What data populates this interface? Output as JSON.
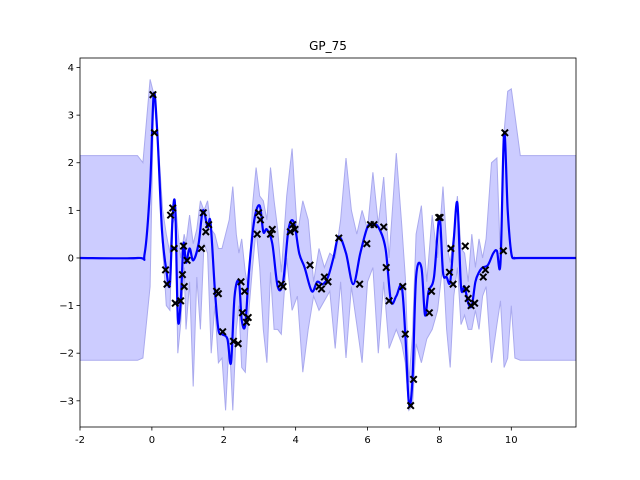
{
  "chart_data": {
    "type": "line",
    "title": "GP_75",
    "xlabel": "",
    "ylabel": "",
    "xlim": [
      -2,
      11.8
    ],
    "ylim": [
      -3.55,
      4.2
    ],
    "xticks": [
      -2,
      0,
      2,
      4,
      6,
      8,
      10
    ],
    "yticks": [
      -3,
      -2,
      -1,
      0,
      1,
      2,
      3,
      4
    ],
    "grid": false,
    "colors": {
      "mean": "#0000ff",
      "band": "#ccccff",
      "band_edge": "#aaaaee",
      "points": "#000000"
    },
    "mean": {
      "x": [
        -2,
        -0.4,
        -0.2,
        -0.05,
        0.05,
        0.15,
        0.28,
        0.4,
        0.5,
        0.58,
        0.65,
        0.72,
        0.8,
        0.88,
        0.95,
        1.05,
        1.15,
        1.3,
        1.42,
        1.55,
        1.63,
        1.75,
        1.85,
        1.95,
        2.1,
        2.2,
        2.3,
        2.42,
        2.5,
        2.6,
        2.7,
        2.85,
        3.0,
        3.1,
        3.2,
        3.35,
        3.5,
        3.65,
        3.8,
        3.95,
        4.1,
        4.25,
        4.45,
        4.6,
        4.75,
        4.9,
        5.05,
        5.2,
        5.4,
        5.6,
        5.8,
        6.0,
        6.15,
        6.3,
        6.5,
        6.65,
        6.8,
        6.95,
        7.05,
        7.15,
        7.25,
        7.35,
        7.5,
        7.6,
        7.7,
        7.85,
        8.0,
        8.1,
        8.2,
        8.3,
        8.4,
        8.5,
        8.6,
        8.7,
        8.8,
        8.9,
        9.0,
        9.1,
        9.2,
        9.35,
        9.5,
        9.6,
        9.7,
        9.8,
        9.9,
        10.0,
        10.1,
        10.25,
        11.8
      ],
      "y": [
        0,
        0,
        0.1,
        1.5,
        3.43,
        2.63,
        0.6,
        -0.25,
        -0.55,
        0.9,
        1.05,
        -1.25,
        -0.95,
        0.3,
        -0.1,
        0.2,
        -0.05,
        0.3,
        1.0,
        0.65,
        0.75,
        -0.65,
        -1.5,
        -1.6,
        -1.7,
        -2.2,
        -0.8,
        -0.5,
        -1.3,
        -1.4,
        -0.3,
        0.8,
        1.1,
        0.55,
        0.6,
        0.3,
        -0.6,
        -0.5,
        0.6,
        0.75,
        0.1,
        -0.2,
        -0.7,
        -0.5,
        -0.55,
        -0.4,
        0.0,
        0.45,
        0.1,
        -0.55,
        0.1,
        0.65,
        0.7,
        0.65,
        0.2,
        -0.9,
        -0.8,
        -0.6,
        -1.6,
        -3.05,
        -2.55,
        -0.4,
        -0.2,
        -1.2,
        -0.7,
        -0.4,
        0.85,
        -0.3,
        -0.4,
        -0.5,
        0.4,
        1.15,
        -0.6,
        -0.6,
        -0.95,
        -1.0,
        -0.5,
        -0.3,
        -0.2,
        -0.15,
        0.1,
        0.15,
        -0.1,
        2.63,
        1.0,
        0.1,
        0,
        0,
        0
      ]
    },
    "band": {
      "x": [
        -2,
        -0.4,
        -0.25,
        -0.05,
        0.05,
        0.15,
        0.3,
        0.4,
        0.5,
        0.58,
        0.65,
        0.72,
        0.8,
        0.9,
        0.95,
        1.05,
        1.15,
        1.25,
        1.35,
        1.45,
        1.55,
        1.65,
        1.75,
        1.85,
        1.95,
        2.05,
        2.15,
        2.25,
        2.35,
        2.42,
        2.5,
        2.6,
        2.7,
        2.8,
        2.9,
        3.0,
        3.1,
        3.2,
        3.3,
        3.4,
        3.5,
        3.6,
        3.75,
        3.9,
        4.05,
        4.2,
        4.35,
        4.5,
        4.65,
        4.8,
        4.95,
        5.1,
        5.25,
        5.4,
        5.55,
        5.7,
        5.85,
        6.0,
        6.15,
        6.3,
        6.45,
        6.6,
        6.8,
        6.95,
        7.05,
        7.15,
        7.25,
        7.35,
        7.5,
        7.65,
        7.8,
        7.95,
        8.1,
        8.2,
        8.3,
        8.4,
        8.5,
        8.6,
        8.7,
        8.8,
        8.9,
        9.0,
        9.1,
        9.2,
        9.3,
        9.45,
        9.6,
        9.7,
        9.8,
        9.9,
        10.0,
        10.1,
        10.25,
        11.8
      ],
      "upper": [
        2.15,
        2.15,
        2.0,
        3.75,
        3.45,
        2.7,
        1.0,
        0.5,
        0.1,
        1.1,
        1.2,
        0.6,
        0.0,
        0.5,
        0.3,
        0.9,
        0.3,
        0.6,
        1.2,
        1.0,
        1.2,
        0.6,
        0.5,
        0.2,
        0.2,
        0.5,
        0.8,
        1.5,
        0.5,
        0.1,
        0.4,
        -0.3,
        -0.7,
        1.1,
        1.9,
        1.3,
        1.2,
        0.8,
        1.9,
        1.2,
        0.6,
        -0.3,
        1.3,
        2.3,
        0.5,
        1.2,
        0.8,
        -0.5,
        0.2,
        -0.2,
        0.1,
        0.0,
        0.8,
        2.1,
        1.0,
        0.5,
        1.0,
        0.6,
        1.8,
        0.7,
        1.7,
        0.0,
        2.2,
        0.7,
        -0.4,
        -2.6,
        -1.6,
        0.5,
        1.1,
        -0.5,
        0.9,
        0.0,
        1.5,
        0.3,
        -0.1,
        0.5,
        1.3,
        0.2,
        0.1,
        -0.5,
        0.5,
        -0.2,
        0.4,
        0.0,
        0.4,
        2.0,
        2.1,
        -0.1,
        2.65,
        3.5,
        3.55,
        3.0,
        2.15,
        2.15
      ],
      "lower": [
        -2.15,
        -2.15,
        -2.1,
        -0.6,
        3.4,
        2.55,
        0.2,
        -1.0,
        -1.1,
        0.7,
        0.9,
        -2.0,
        -1.4,
        -0.2,
        -1.5,
        -0.5,
        -2.7,
        -0.4,
        -1.5,
        0.3,
        0.1,
        -2.0,
        -1.0,
        -2.2,
        -2.1,
        -3.2,
        -1.7,
        -3.2,
        -1.5,
        -1.0,
        -2.3,
        -2.4,
        -1.1,
        -0.2,
        0.6,
        -0.2,
        -1.5,
        -2.2,
        -0.3,
        -1.5,
        -1.5,
        -1.6,
        0.0,
        -1.1,
        -0.8,
        -2.4,
        -1.5,
        -0.8,
        -1.1,
        -0.9,
        -0.7,
        -1.9,
        -0.5,
        -2.1,
        -0.6,
        -1.4,
        -2.2,
        -0.5,
        -0.2,
        -2.0,
        -0.5,
        -1.9,
        -1.5,
        -1.8,
        -2.2,
        -3.2,
        -3.1,
        -1.8,
        -2.2,
        -1.7,
        -1.5,
        -1.1,
        -0.1,
        -1.5,
        -2.3,
        -0.8,
        -0.2,
        -1.4,
        -1.2,
        -1.5,
        -1.5,
        -1.1,
        -1.5,
        -0.8,
        -0.6,
        -2.2,
        -1.4,
        -0.9,
        -2.3,
        -2.1,
        -1.0,
        -2.1,
        -2.15,
        -2.15
      ]
    },
    "points": {
      "x": [
        0.03,
        0.07,
        0.38,
        0.42,
        0.52,
        0.58,
        0.62,
        0.65,
        0.8,
        0.85,
        0.88,
        0.9,
        0.98,
        1.38,
        1.43,
        1.5,
        1.58,
        1.8,
        1.85,
        1.97,
        2.27,
        2.4,
        2.48,
        2.52,
        2.58,
        2.63,
        2.68,
        2.93,
        2.97,
        3.02,
        3.3,
        3.35,
        3.6,
        3.65,
        3.85,
        3.92,
        3.98,
        4.4,
        4.65,
        4.72,
        4.8,
        4.9,
        5.2,
        5.78,
        5.98,
        6.08,
        6.18,
        6.45,
        6.52,
        6.6,
        6.98,
        7.05,
        7.2,
        7.28,
        7.72,
        7.78,
        7.98,
        8.02,
        8.28,
        8.32,
        8.38,
        8.72,
        8.75,
        8.8,
        8.88,
        8.98,
        9.22,
        9.28,
        9.78,
        9.82
      ],
      "y": [
        3.43,
        2.63,
        -0.25,
        -0.55,
        0.9,
        1.05,
        0.2,
        -0.95,
        -0.9,
        -0.35,
        0.25,
        -0.6,
        -0.05,
        0.2,
        0.95,
        0.55,
        0.7,
        -0.7,
        -0.75,
        -1.55,
        -1.75,
        -1.8,
        -0.5,
        -1.15,
        -0.7,
        -1.35,
        -1.25,
        0.5,
        0.95,
        0.8,
        0.5,
        0.6,
        -0.55,
        -0.6,
        0.55,
        0.7,
        0.6,
        -0.15,
        -0.6,
        -0.65,
        -0.4,
        -0.5,
        0.42,
        -0.55,
        0.3,
        0.7,
        0.7,
        0.65,
        -0.2,
        -0.9,
        -0.6,
        -1.6,
        -3.1,
        -2.55,
        -1.15,
        -0.7,
        0.85,
        0.85,
        -0.3,
        0.2,
        -0.55,
        0.25,
        -0.65,
        -0.85,
        -1.0,
        -0.95,
        -0.4,
        -0.25,
        0.15,
        2.63
      ]
    }
  }
}
